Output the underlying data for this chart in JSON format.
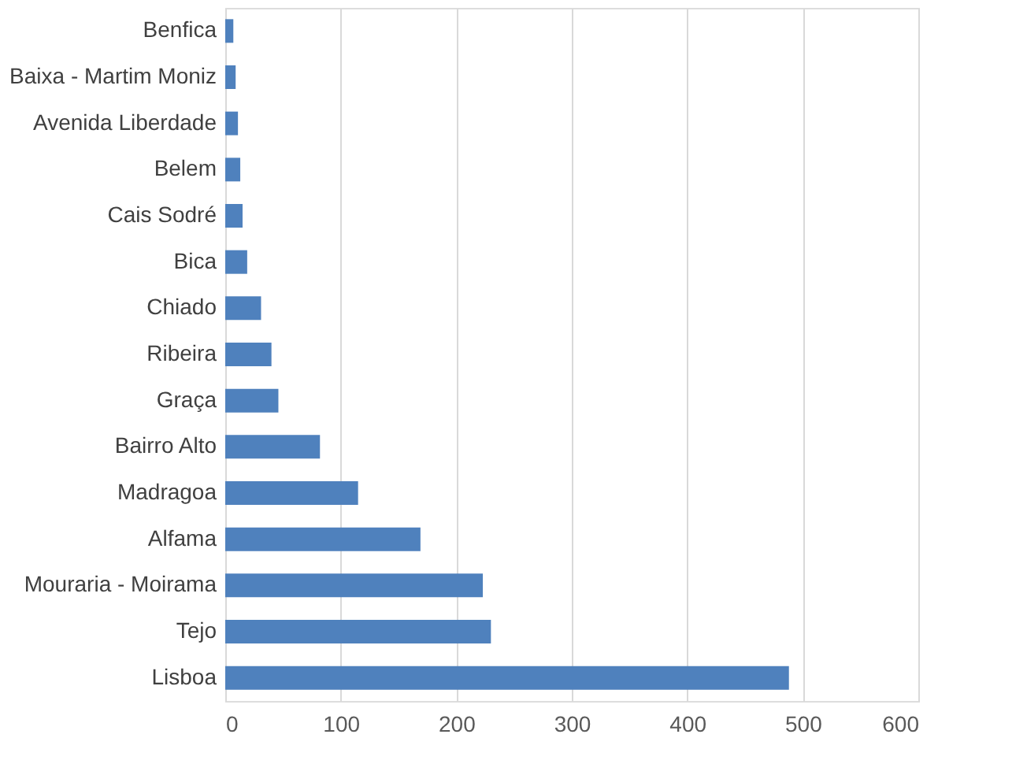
{
  "chart_data": {
    "type": "bar",
    "orientation": "horizontal",
    "categories": [
      "Benfica",
      "Baixa - Martim Moniz",
      "Avenida Liberdade",
      "Belem",
      "Cais Sodré",
      "Bica",
      "Chiado",
      "Ribeira",
      "Graça",
      "Bairro Alto",
      "Madragoa",
      "Alfama",
      "Mouraria - Moirama",
      "Tejo",
      "Lisboa"
    ],
    "values": [
      7,
      9,
      11,
      13,
      15,
      19,
      31,
      40,
      46,
      82,
      115,
      169,
      223,
      230,
      488
    ],
    "color": "#4f81bd",
    "xlim": [
      0,
      600
    ],
    "xticks": [
      0,
      100,
      200,
      300,
      400,
      500,
      600
    ],
    "grid": "x"
  }
}
